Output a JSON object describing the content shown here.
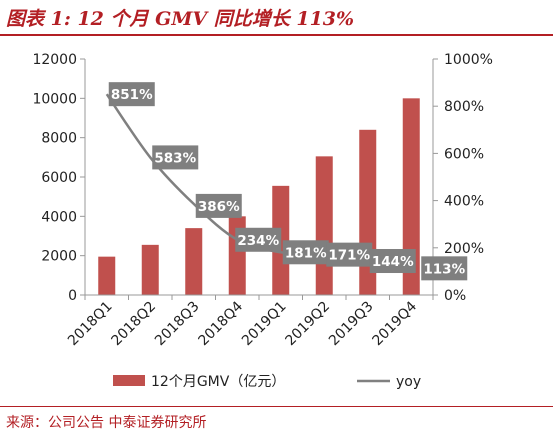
{
  "header": {
    "title": "图表 1:  12 个月 GMV 同比增长 113%"
  },
  "footer": {
    "source": "来源：公司公告  中泰证券研究所"
  },
  "colors": {
    "bar": "#c0504d",
    "line": "#808080",
    "label_box": "#7f7f7f",
    "accent": "#b31f24"
  },
  "chart_data": {
    "type": "bar+line",
    "categories": [
      "2018Q1",
      "2018Q2",
      "2018Q3",
      "2018Q4",
      "2019Q1",
      "2019Q2",
      "2019Q3",
      "2019Q4"
    ],
    "series": [
      {
        "name": "12个月GMV（亿元）",
        "type": "bar",
        "axis": "left",
        "values": [
          1950,
          2550,
          3400,
          4000,
          5550,
          7050,
          8400,
          10000
        ]
      },
      {
        "name": "yoy",
        "type": "line",
        "axis": "right",
        "values": [
          851,
          583,
          386,
          234,
          181,
          171,
          144,
          113
        ],
        "labels": [
          "851%",
          "583%",
          "386%",
          "234%",
          "181%",
          "171%",
          "144%",
          "113%"
        ]
      }
    ],
    "y_left": {
      "min": 0,
      "max": 12000,
      "ticks": [
        "0",
        "2000",
        "4000",
        "6000",
        "8000",
        "10000",
        "12000"
      ]
    },
    "y_right": {
      "min": 0,
      "max": 1000,
      "ticks": [
        "0%",
        "200%",
        "400%",
        "600%",
        "800%",
        "1000%"
      ]
    },
    "grid": false,
    "legend": "bottom"
  }
}
